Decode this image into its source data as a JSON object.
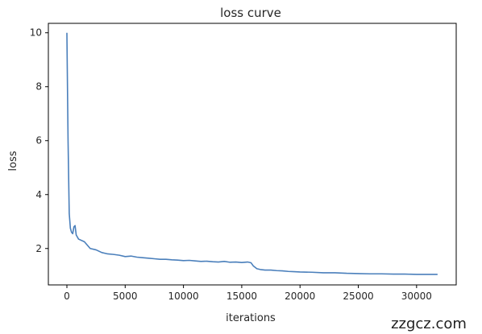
{
  "chart_data": {
    "type": "line",
    "title": "loss curve",
    "xlabel": "iterations",
    "ylabel": "loss",
    "xlim": [
      -1590,
      33400
    ],
    "ylim": [
      0.65,
      10.35
    ],
    "xticks": [
      0,
      5000,
      10000,
      15000,
      20000,
      25000,
      30000
    ],
    "xtick_labels": [
      "0",
      "5000",
      "10000",
      "15000",
      "20000",
      "25000",
      "30000"
    ],
    "yticks": [
      2,
      4,
      6,
      8,
      10
    ],
    "ytick_labels": [
      "2",
      "4",
      "6",
      "8",
      "10"
    ],
    "grid": false,
    "line_color": "#4a7fbb",
    "series": [
      {
        "x": [
          0,
          100,
          200,
          300,
          400,
          500,
          600,
          700,
          800,
          1000,
          1500,
          2000,
          2500,
          3000,
          3500,
          4000,
          4500,
          5000,
          5500,
          6000,
          6500,
          7000,
          7500,
          8000,
          8500,
          9000,
          9500,
          10000,
          10500,
          11000,
          11500,
          12000,
          12500,
          13000,
          13500,
          14000,
          14500,
          15000,
          15500,
          15800,
          16000,
          16300,
          16600,
          17000,
          17500,
          18000,
          18500,
          19000,
          19500,
          20000,
          21000,
          22000,
          23000,
          24000,
          25000,
          26000,
          27000,
          28000,
          29000,
          30000,
          31000,
          31800
        ],
        "y": [
          10.0,
          6.0,
          3.3,
          2.75,
          2.6,
          2.55,
          2.8,
          2.85,
          2.5,
          2.35,
          2.25,
          2.0,
          1.95,
          1.85,
          1.8,
          1.78,
          1.75,
          1.7,
          1.72,
          1.68,
          1.66,
          1.64,
          1.62,
          1.6,
          1.6,
          1.58,
          1.57,
          1.55,
          1.56,
          1.54,
          1.52,
          1.53,
          1.51,
          1.5,
          1.52,
          1.49,
          1.5,
          1.48,
          1.5,
          1.47,
          1.35,
          1.25,
          1.22,
          1.2,
          1.2,
          1.18,
          1.17,
          1.15,
          1.14,
          1.13,
          1.12,
          1.1,
          1.1,
          1.08,
          1.07,
          1.06,
          1.06,
          1.05,
          1.05,
          1.04,
          1.04,
          1.04
        ]
      }
    ]
  },
  "watermark": "zzgcz.com"
}
